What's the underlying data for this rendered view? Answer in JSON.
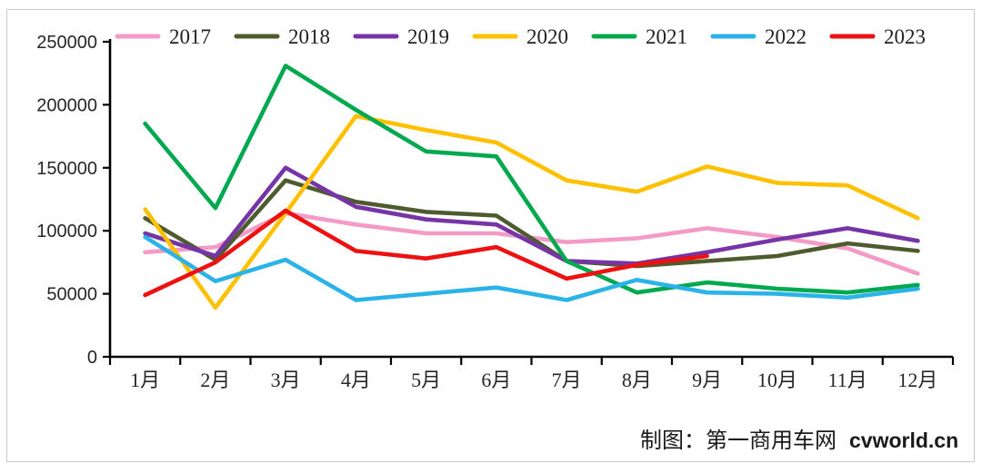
{
  "figure": {
    "caption": {
      "maker_label": "制图：第一商用车网",
      "site": "cvworld.cn"
    },
    "frame_color": "#c9c9c9",
    "axis_color": "#000000"
  },
  "chart_data": {
    "type": "line",
    "title": "",
    "xlabel": "",
    "ylabel": "",
    "grid": false,
    "legend_position": "top",
    "ylim": [
      0,
      250000
    ],
    "y_ticks": [
      0,
      50000,
      100000,
      150000,
      200000,
      250000
    ],
    "categories": [
      "1月",
      "2月",
      "3月",
      "4月",
      "5月",
      "6月",
      "7月",
      "8月",
      "9月",
      "10月",
      "11月",
      "12月"
    ],
    "series": [
      {
        "name": "2017",
        "color": "#F49AC6",
        "values": [
          83000,
          87000,
          114000,
          105000,
          98000,
          98000,
          91000,
          94000,
          102000,
          95000,
          86000,
          66000
        ]
      },
      {
        "name": "2018",
        "color": "#4E5B2F",
        "values": [
          110000,
          77000,
          140000,
          123000,
          115000,
          112000,
          76000,
          72000,
          76000,
          80000,
          90000,
          84000
        ]
      },
      {
        "name": "2019",
        "color": "#7634A6",
        "values": [
          98000,
          80000,
          150000,
          119000,
          109000,
          105000,
          76000,
          74000,
          83000,
          93000,
          102000,
          92000
        ]
      },
      {
        "name": "2020",
        "color": "#FFC000",
        "values": [
          117000,
          39000,
          114000,
          191000,
          180000,
          170000,
          140000,
          131000,
          151000,
          138000,
          136000,
          110000
        ]
      },
      {
        "name": "2021",
        "color": "#00A94F",
        "values": [
          185000,
          118000,
          231000,
          196000,
          163000,
          159000,
          76000,
          51000,
          59000,
          54000,
          51000,
          57000
        ]
      },
      {
        "name": "2022",
        "color": "#2BB3E8",
        "values": [
          95000,
          60000,
          77000,
          45000,
          50000,
          55000,
          45000,
          61000,
          51000,
          50000,
          47000,
          54000
        ]
      },
      {
        "name": "2023",
        "color": "#ED1111",
        "values": [
          49000,
          75000,
          116000,
          84000,
          78000,
          87000,
          62000,
          73000,
          80000
        ]
      }
    ]
  }
}
